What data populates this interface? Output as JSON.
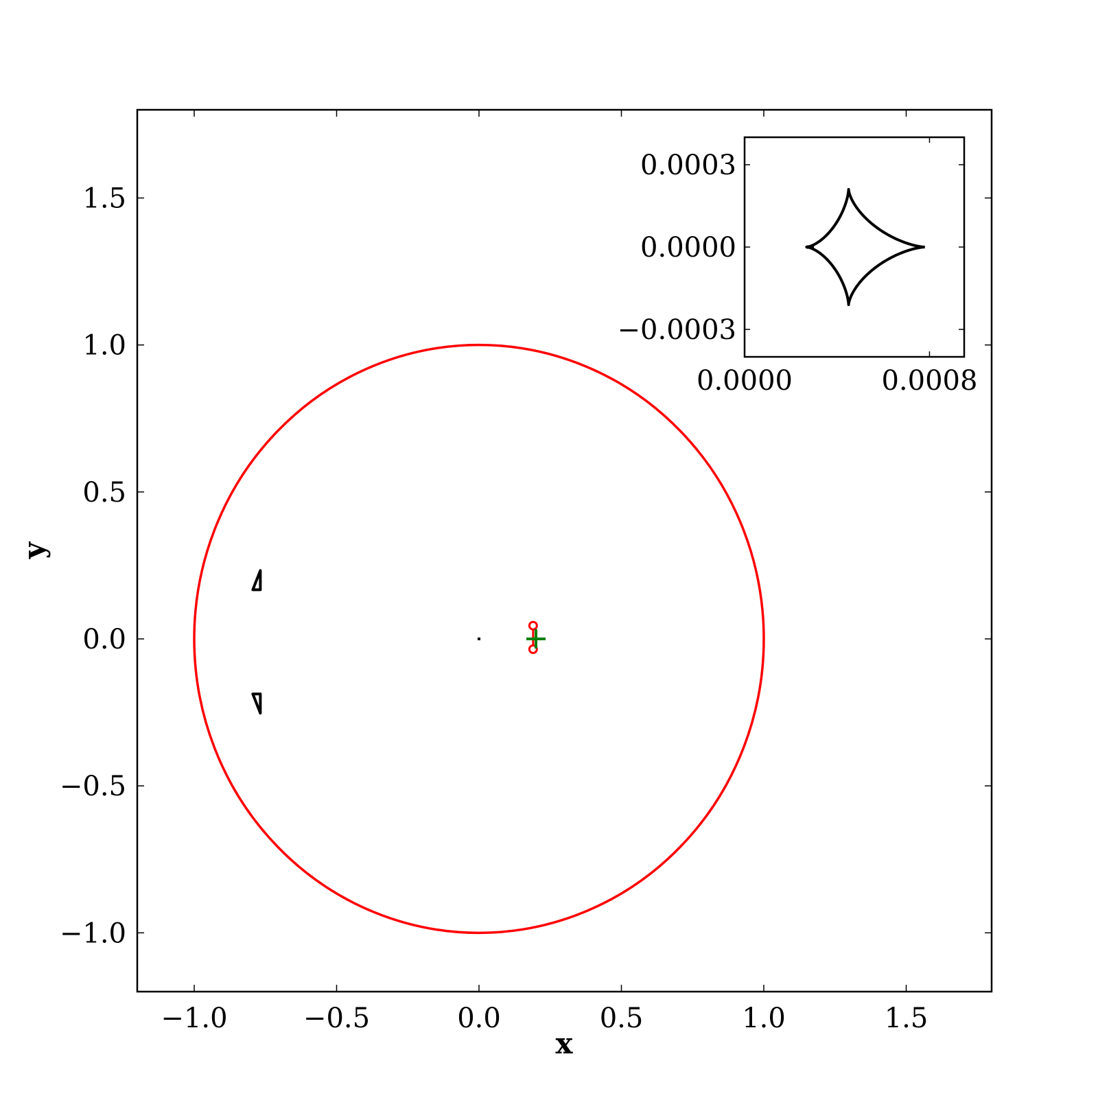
{
  "chart_data": [
    {
      "type": "scatter",
      "xlabel": "x",
      "ylabel": "y",
      "xlim": [
        -1.2,
        1.8
      ],
      "ylim": [
        -1.2,
        1.8
      ],
      "xticks": [
        -1.0,
        -0.5,
        0.0,
        0.5,
        1.0,
        1.5
      ],
      "yticks": [
        -1.0,
        -0.5,
        0.0,
        0.5,
        1.0,
        1.5
      ],
      "xtick_labels": [
        "−1.0",
        "−0.5",
        "0.0",
        "0.5",
        "1.0",
        "1.5"
      ],
      "ytick_labels": [
        "−1.0",
        "−0.5",
        "0.0",
        "0.5",
        "1.0",
        "1.5"
      ],
      "grid": false,
      "curves": [
        {
          "kind": "circle",
          "center": [
            0.0,
            0.0
          ],
          "radius": 1.0,
          "color": "#ff0000"
        },
        {
          "kind": "small-loop",
          "points": [
            [
              0.19,
              0.045
            ],
            [
              0.19,
              -0.035
            ]
          ],
          "color": "#ff0000"
        },
        {
          "kind": "caustic",
          "points": [
            [
              -0.775,
              0.2
            ],
            [
              -0.775,
              -0.22
            ]
          ],
          "color": "#000000"
        },
        {
          "kind": "caustic",
          "points": [
            [
              0.0,
              0.0
            ]
          ],
          "color": "#000000"
        }
      ],
      "markers": [
        {
          "symbol": "+",
          "x": 0.2,
          "y": 0.0,
          "color": "#008000"
        }
      ]
    },
    {
      "type": "line",
      "role": "inset",
      "xlim": [
        0.0,
        0.00095
      ],
      "ylim": [
        -0.0004,
        0.0004
      ],
      "xticks": [
        0.0,
        0.0008
      ],
      "yticks": [
        -0.0003,
        0.0,
        0.0003
      ],
      "xtick_labels": [
        "0.0000",
        "0.0008"
      ],
      "ytick_labels": [
        "−0.0003",
        "0.0000",
        "0.0003"
      ],
      "astroid": {
        "center": [
          0.00045,
          0.0
        ],
        "half_width": 0.00033,
        "half_height": 0.00021,
        "tail_x": 0.0003,
        "color": "#000000"
      }
    }
  ]
}
